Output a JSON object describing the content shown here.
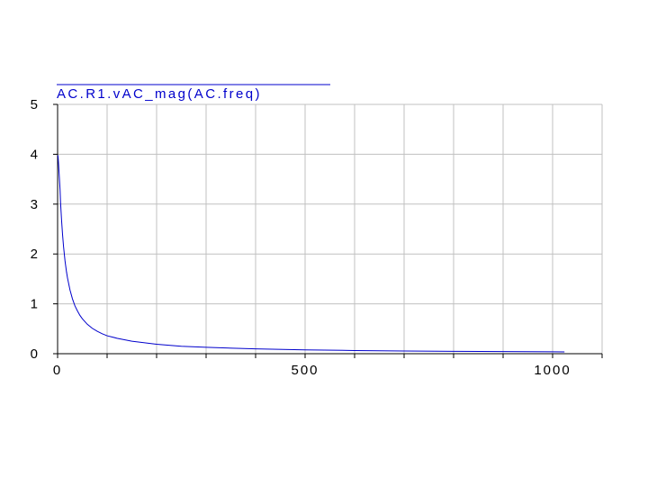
{
  "chart_data": {
    "type": "line",
    "title": "",
    "xlabel": "",
    "ylabel": "",
    "xlim": [
      0,
      1100
    ],
    "ylim": [
      0,
      5
    ],
    "x_ticks": [
      0,
      500,
      1000
    ],
    "x_minor_ticks": [
      100,
      200,
      300,
      400,
      500,
      600,
      700,
      800,
      900,
      1000,
      1100
    ],
    "y_ticks": [
      0,
      1,
      2,
      3,
      4,
      5
    ],
    "grid": true,
    "legend": {
      "position": "top-left"
    },
    "colors": {
      "series": "#0000cc",
      "grid": "#c0c0c0",
      "axis": "#000000"
    },
    "series": [
      {
        "name": "AC.R1.vAC_mag(AC.freq)",
        "x": [
          0.5,
          1,
          2,
          3,
          5,
          6,
          8,
          10,
          12,
          15,
          18,
          20,
          25,
          30,
          35,
          40,
          45,
          50,
          60,
          70,
          80,
          90,
          100,
          120,
          150,
          200,
          250,
          300,
          400,
          500,
          600,
          700,
          800,
          900,
          1000,
          1024
        ],
        "y": [
          3.98,
          3.95,
          3.8,
          3.62,
          3.29,
          3.03,
          2.68,
          2.39,
          2.15,
          1.86,
          1.64,
          1.52,
          1.28,
          1.1,
          0.96,
          0.86,
          0.77,
          0.7,
          0.59,
          0.51,
          0.45,
          0.4,
          0.36,
          0.31,
          0.25,
          0.19,
          0.15,
          0.128,
          0.096,
          0.077,
          0.064,
          0.055,
          0.048,
          0.043,
          0.038,
          0.037
        ]
      }
    ]
  }
}
